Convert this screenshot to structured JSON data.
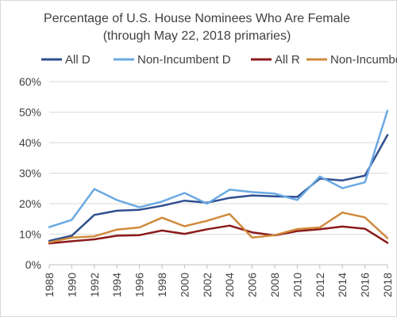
{
  "chart_data": {
    "type": "line",
    "title": "Percentage of U.S. House Nominees Who Are Female",
    "subtitle": "(through May 22, 2018 primaries)",
    "xlabel": "",
    "ylabel": "",
    "ylim": [
      0,
      60
    ],
    "ytick_step": 10,
    "ytick_suffix": "%",
    "grid": true,
    "legend_position": "top",
    "x": [
      1988,
      1990,
      1992,
      1994,
      1996,
      1998,
      2000,
      2002,
      2004,
      2006,
      2008,
      2010,
      2012,
      2014,
      2016,
      2018
    ],
    "series": [
      {
        "name": "All D",
        "color": "#2f4f8f",
        "values": [
          7.8,
          9.5,
          16.3,
          17.7,
          18.0,
          19.3,
          21.0,
          20.3,
          21.9,
          22.7,
          22.4,
          22.2,
          28.2,
          27.6,
          29.2,
          42.5
        ]
      },
      {
        "name": "Non-Incumbent D",
        "color": "#6aa9e3",
        "values": [
          12.3,
          14.7,
          24.8,
          21.2,
          18.8,
          20.7,
          23.5,
          20.0,
          24.6,
          23.8,
          23.3,
          21.2,
          28.9,
          25.1,
          27.0,
          50.5
        ]
      },
      {
        "name": "All R",
        "color": "#8b1a1a",
        "values": [
          7.0,
          7.7,
          8.3,
          9.5,
          9.7,
          11.2,
          10.1,
          11.6,
          12.8,
          10.6,
          9.6,
          11.0,
          11.6,
          12.5,
          11.8,
          7.2
        ]
      },
      {
        "name": "Non-Incumbent R",
        "color": "#d08a3c",
        "values": [
          7.3,
          8.9,
          9.3,
          11.5,
          12.2,
          15.4,
          12.6,
          14.4,
          16.6,
          8.9,
          9.7,
          11.7,
          12.2,
          17.1,
          15.5,
          8.7
        ]
      }
    ]
  }
}
